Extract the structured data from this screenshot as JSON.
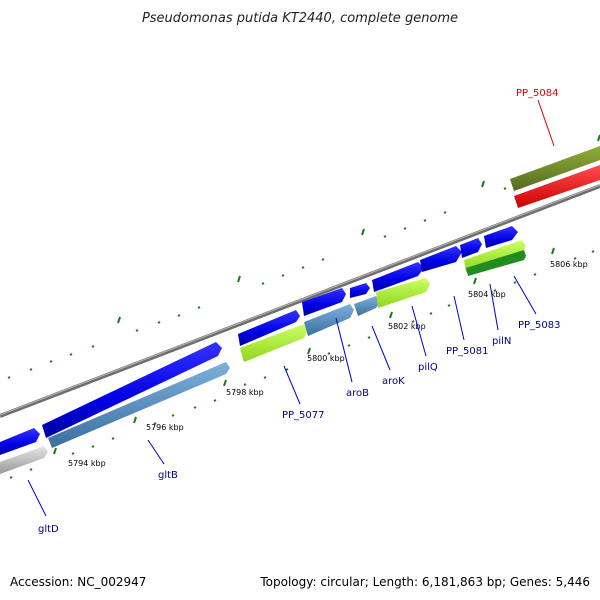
{
  "title": "Pseudomonas putida KT2440, complete genome",
  "footer": {
    "accession": "Accession: NC_002947",
    "summary": "Topology: circular; Length: 6,181,863 bp; Genes: 5,446"
  },
  "scale_labels": [
    "5794 kbp",
    "5796 kbp",
    "5798 kbp",
    "5800 kbp",
    "5802 kbp",
    "5804 kbp",
    "5806 kbp"
  ],
  "genes": {
    "gltD": "gltD",
    "gltB": "gltB",
    "PP_5077": "PP_5077",
    "aroB": "aroB",
    "aroK": "aroK",
    "pilQ": "pilQ",
    "PP_5081": "PP_5081",
    "pilN": "pilN",
    "PP_5083": "PP_5083",
    "PP_5084": "PP_5084"
  },
  "colors": {
    "cds_forward": "#0000e6",
    "cds_reverse": "#4682b4",
    "gene_light": "#adff2f",
    "gene_dark": "#228b22",
    "olive": "#6b8e23",
    "red": "#ff0000",
    "backbone": "#888888",
    "tick": "#1a7a1a",
    "label_line": "#0000cc",
    "red_label": "#e00000"
  }
}
